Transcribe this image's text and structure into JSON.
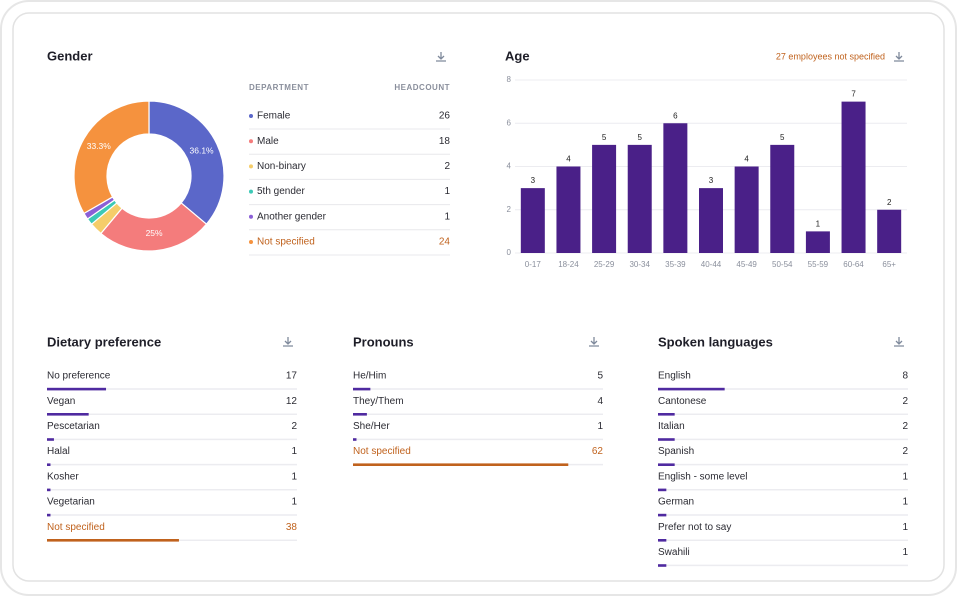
{
  "chart_data": [
    {
      "type": "pie",
      "title": "Gender",
      "categories": [
        "Female",
        "Male",
        "Non-binary",
        "5th gender",
        "Another gender",
        "Not specified"
      ],
      "values": [
        36.1,
        25,
        2.8,
        1.4,
        1.4,
        33.3
      ],
      "value_labels": [
        "36.1%",
        "25%",
        null,
        null,
        null,
        "33.3%"
      ],
      "colors": [
        "#5b67c9",
        "#f47c7c",
        "#f5cd6a",
        "#3cc9b6",
        "#8b5fd6",
        "#f5923e"
      ],
      "table_headers": [
        "DEPARTMENT",
        "HEADCOUNT"
      ],
      "headcounts": [
        26,
        18,
        2,
        1,
        1,
        24
      ]
    },
    {
      "type": "bar",
      "title": "Age",
      "annotation": "27 employees not specified",
      "categories": [
        "0-17",
        "18-24",
        "25-29",
        "30-34",
        "35-39",
        "40-44",
        "45-49",
        "50-54",
        "55-59",
        "60-64",
        "65+"
      ],
      "values": [
        3,
        4,
        5,
        5,
        6,
        3,
        4,
        5,
        1,
        7,
        2
      ],
      "color": "#4a2088",
      "ylim": [
        0,
        8
      ],
      "yticks": [
        0,
        2,
        4,
        6,
        8
      ],
      "grid": true
    },
    {
      "type": "hbar",
      "title": "Dietary preference",
      "categories": [
        "No preference",
        "Vegan",
        "Pescetarian",
        "Halal",
        "Kosher",
        "Vegetarian",
        "Not specified"
      ],
      "values": [
        17,
        12,
        2,
        1,
        1,
        1,
        38
      ],
      "xlim": [
        0,
        72
      ],
      "colors": [
        "#4f2aa0",
        "#4f2aa0",
        "#4f2aa0",
        "#4f2aa0",
        "#4f2aa0",
        "#4f2aa0",
        "#c0621d"
      ]
    },
    {
      "type": "hbar",
      "title": "Pronouns",
      "categories": [
        "He/Him",
        "They/Them",
        "She/Her",
        "Not specified"
      ],
      "values": [
        5,
        4,
        1,
        62
      ],
      "xlim": [
        0,
        72
      ],
      "colors": [
        "#4f2aa0",
        "#4f2aa0",
        "#4f2aa0",
        "#c0621d"
      ]
    },
    {
      "type": "hbar",
      "title": "Spoken languages",
      "categories": [
        "English",
        "Cantonese",
        "Italian",
        "Spanish",
        "English - some level",
        "German",
        "Prefer not to say",
        "Swahili"
      ],
      "values": [
        8,
        2,
        2,
        2,
        1,
        1,
        1,
        1
      ],
      "xlim": [
        0,
        30
      ],
      "colors": [
        "#4f2aa0",
        "#4f2aa0",
        "#4f2aa0",
        "#4f2aa0",
        "#4f2aa0",
        "#4f2aa0",
        "#4f2aa0",
        "#4f2aa0"
      ]
    }
  ]
}
